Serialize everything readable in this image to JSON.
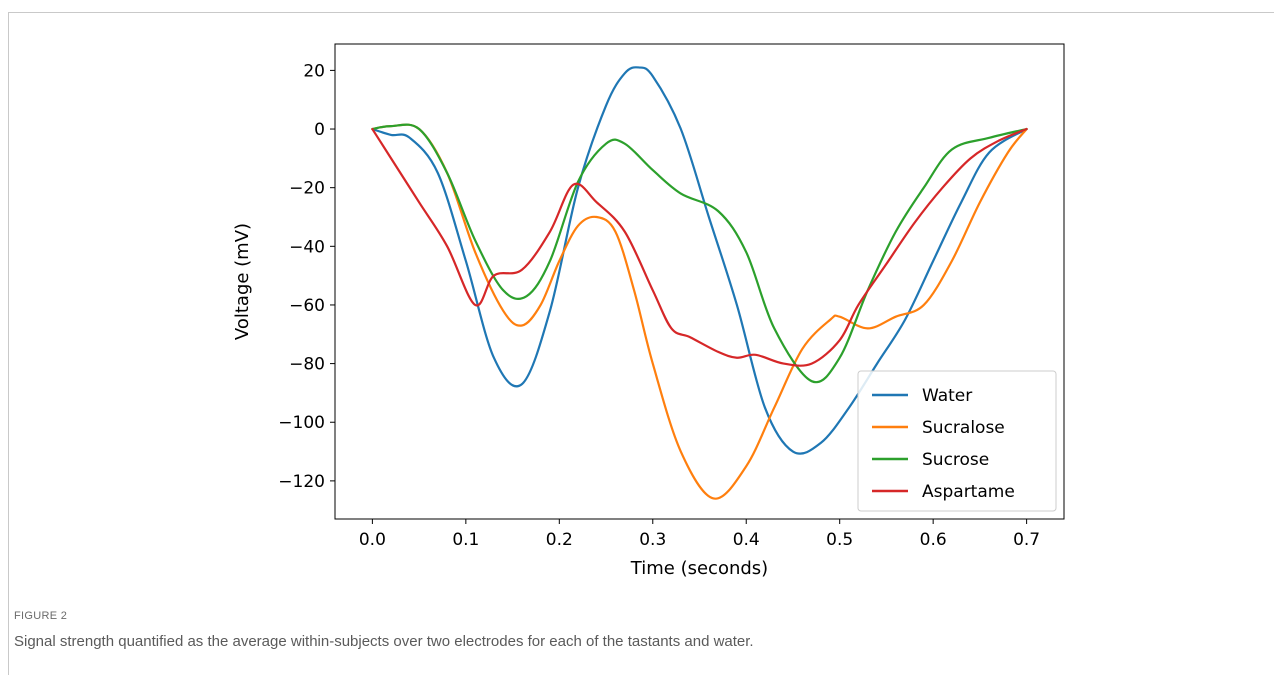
{
  "figure": {
    "label": "FIGURE 2",
    "caption": "Signal strength quantified as the average within-subjects over two electrodes for each of the tastants and water."
  },
  "chart_data": {
    "type": "line",
    "xlabel": "Time (seconds)",
    "ylabel": "Voltage (mV)",
    "xlim": [
      -0.04,
      0.74
    ],
    "ylim": [
      -133,
      29
    ],
    "xticks": [
      0.0,
      0.1,
      0.2,
      0.3,
      0.4,
      0.5,
      0.6,
      0.7
    ],
    "xtick_labels": [
      "0.0",
      "0.1",
      "0.2",
      "0.3",
      "0.4",
      "0.5",
      "0.6",
      "0.7"
    ],
    "yticks": [
      20,
      0,
      -20,
      -40,
      -60,
      -80,
      -100,
      -120
    ],
    "ytick_labels": [
      "20",
      "0",
      "−20",
      "−40",
      "−60",
      "−80",
      "−100",
      "−120"
    ],
    "grid": false,
    "legend_position": "lower-right",
    "series": [
      {
        "name": "Water",
        "color": "#1f77b4",
        "x": [
          0.0,
          0.02,
          0.04,
          0.07,
          0.1,
          0.13,
          0.16,
          0.19,
          0.22,
          0.25,
          0.27,
          0.285,
          0.3,
          0.33,
          0.36,
          0.39,
          0.42,
          0.45,
          0.48,
          0.51,
          0.54,
          0.57,
          0.6,
          0.63,
          0.66,
          0.7
        ],
        "y": [
          0,
          -2,
          -3,
          -15,
          -45,
          -78,
          -87,
          -62,
          -20,
          8,
          19,
          21,
          18,
          0,
          -30,
          -60,
          -95,
          -110,
          -107,
          -95,
          -80,
          -65,
          -45,
          -25,
          -8,
          0
        ]
      },
      {
        "name": "Sucralose",
        "color": "#ff7f0e",
        "x": [
          0.0,
          0.02,
          0.05,
          0.08,
          0.11,
          0.14,
          0.16,
          0.18,
          0.2,
          0.22,
          0.24,
          0.26,
          0.28,
          0.3,
          0.33,
          0.365,
          0.4,
          0.43,
          0.46,
          0.49,
          0.5,
          0.53,
          0.56,
          0.59,
          0.62,
          0.65,
          0.68,
          0.7
        ],
        "y": [
          0,
          1,
          0,
          -15,
          -42,
          -62,
          -67,
          -60,
          -45,
          -33,
          -30,
          -35,
          -55,
          -80,
          -110,
          -126,
          -115,
          -95,
          -75,
          -65,
          -64,
          -68,
          -64,
          -60,
          -45,
          -25,
          -8,
          0
        ]
      },
      {
        "name": "Sucrose",
        "color": "#2ca02c",
        "x": [
          0.0,
          0.02,
          0.05,
          0.08,
          0.11,
          0.14,
          0.165,
          0.19,
          0.22,
          0.25,
          0.27,
          0.3,
          0.33,
          0.37,
          0.4,
          0.43,
          0.47,
          0.5,
          0.53,
          0.56,
          0.59,
          0.62,
          0.66,
          0.7
        ],
        "y": [
          0,
          1,
          0,
          -15,
          -38,
          -55,
          -57,
          -45,
          -18,
          -5,
          -5,
          -14,
          -22,
          -28,
          -42,
          -68,
          -86,
          -78,
          -55,
          -35,
          -20,
          -7,
          -3,
          0
        ]
      },
      {
        "name": "Aspartame",
        "color": "#d62728",
        "x": [
          0.0,
          0.02,
          0.05,
          0.08,
          0.11,
          0.13,
          0.16,
          0.19,
          0.215,
          0.24,
          0.27,
          0.3,
          0.32,
          0.34,
          0.37,
          0.39,
          0.41,
          0.44,
          0.47,
          0.5,
          0.52,
          0.55,
          0.58,
          0.61,
          0.64,
          0.67,
          0.7
        ],
        "y": [
          0,
          -10,
          -25,
          -40,
          -60,
          -50,
          -48,
          -35,
          -19,
          -25,
          -35,
          -55,
          -68,
          -71,
          -76,
          -78,
          -77,
          -80,
          -80,
          -72,
          -60,
          -46,
          -32,
          -20,
          -10,
          -4,
          0
        ]
      }
    ]
  }
}
